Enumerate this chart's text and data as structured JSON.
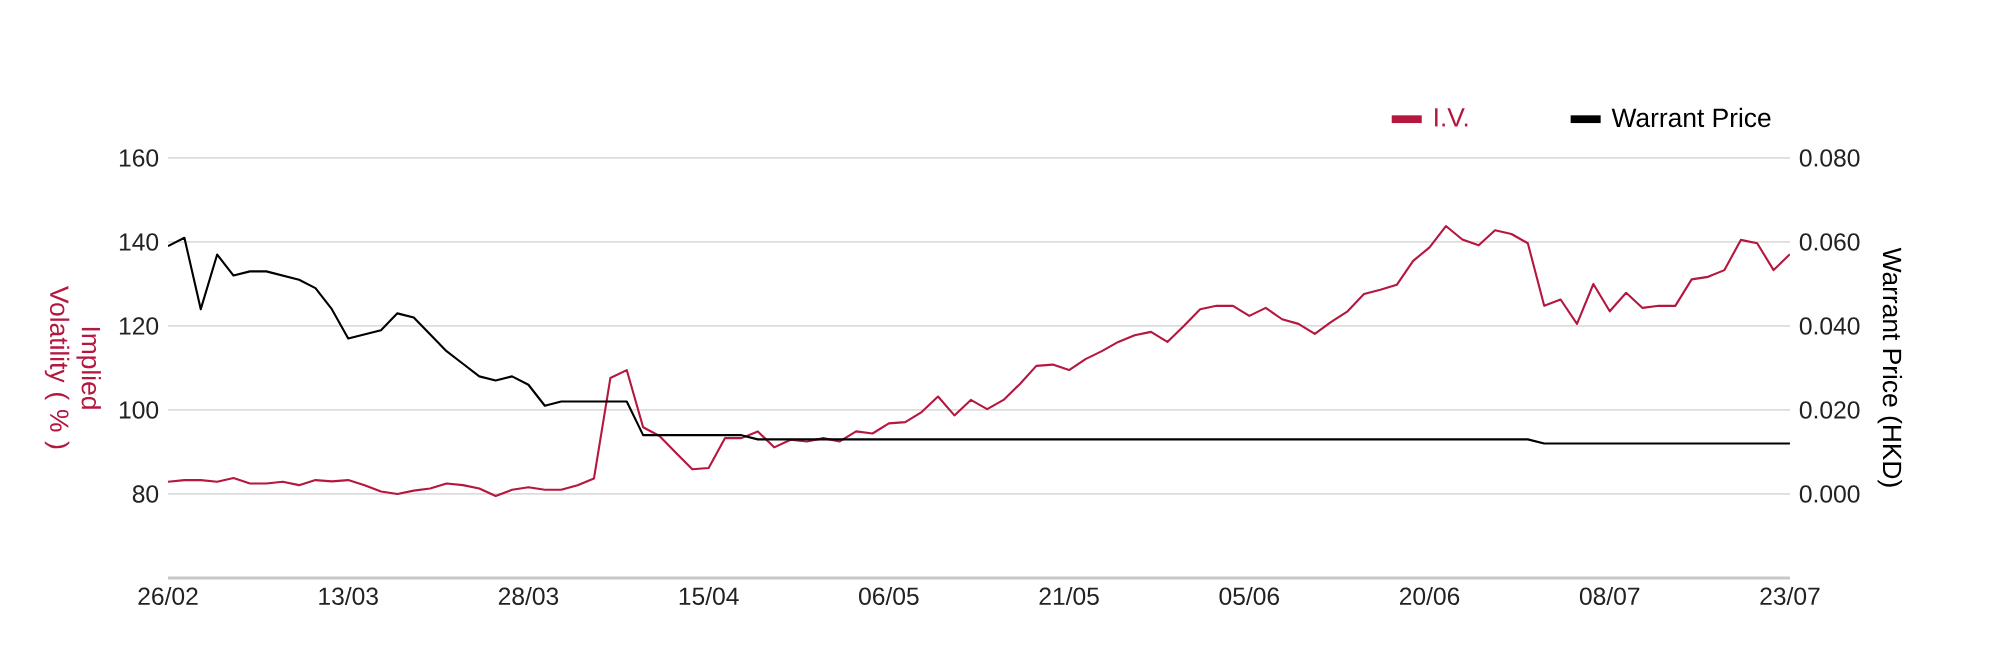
{
  "chart_data": {
    "type": "line",
    "categories": [
      "26/02",
      null,
      null,
      null,
      null,
      null,
      null,
      null,
      null,
      null,
      null,
      "13/03",
      null,
      null,
      null,
      null,
      null,
      null,
      null,
      null,
      null,
      null,
      "28/03",
      null,
      null,
      null,
      null,
      null,
      null,
      null,
      null,
      null,
      null,
      "15/04",
      null,
      null,
      null,
      null,
      null,
      null,
      null,
      null,
      null,
      null,
      "06/05",
      null,
      null,
      null,
      null,
      null,
      null,
      null,
      null,
      null,
      null,
      "21/05",
      null,
      null,
      null,
      null,
      null,
      null,
      null,
      null,
      null,
      null,
      "05/06",
      null,
      null,
      null,
      null,
      null,
      null,
      null,
      null,
      null,
      null,
      "20/06",
      null,
      null,
      null,
      null,
      null,
      null,
      null,
      null,
      null,
      null,
      "08/07",
      null,
      null,
      null,
      null,
      null,
      null,
      null,
      null,
      null,
      null,
      "23/07"
    ],
    "series": [
      {
        "name": "I.V.",
        "color": "#b5173f",
        "values": [
          82.9,
          83.3,
          83.3,
          82.9,
          83.8,
          82.5,
          82.5,
          82.9,
          82.1,
          83.3,
          83.0,
          83.3,
          82.1,
          80.6,
          80.0,
          80.8,
          81.3,
          82.5,
          82.1,
          81.3,
          79.5,
          81.0,
          81.6,
          81.0,
          81.0,
          82.1,
          83.7,
          107.6,
          109.5,
          95.9,
          93.8,
          89.8,
          85.9,
          86.2,
          93.3,
          93.3,
          94.9,
          91.1,
          92.9,
          92.5,
          93.3,
          92.5,
          94.9,
          94.4,
          96.8,
          97.1,
          99.5,
          103.2,
          98.7,
          102.4,
          100.2,
          102.4,
          106.2,
          110.5,
          110.8,
          109.5,
          112.1,
          114.0,
          116.2,
          117.8,
          118.6,
          116.2,
          120.0,
          124.0,
          124.8,
          124.8,
          122.4,
          124.3,
          121.6,
          120.5,
          118.1,
          121.0,
          123.5,
          127.6,
          128.6,
          129.8,
          135.5,
          138.7,
          143.8,
          140.6,
          139.2,
          142.8,
          141.9,
          139.7,
          124.8,
          126.3,
          120.5,
          130.0,
          123.5,
          127.9,
          124.3,
          124.8,
          124.8,
          131.1,
          131.7,
          133.3,
          140.5,
          139.7,
          133.3,
          137.1
        ]
      },
      {
        "name": "Warrant Price",
        "color": "#000000",
        "axis": "y2",
        "values": [
          0.059,
          0.061,
          0.044,
          0.057,
          0.052,
          0.053,
          0.053,
          0.052,
          0.051,
          0.049,
          0.044,
          0.037,
          0.038,
          0.039,
          0.043,
          0.042,
          0.038,
          0.034,
          0.031,
          0.028,
          0.027,
          0.028,
          0.026,
          0.021,
          0.022,
          0.022,
          0.022,
          0.022,
          0.022,
          0.014,
          0.014,
          0.014,
          0.014,
          0.014,
          0.014,
          0.014,
          0.013,
          0.013,
          0.013,
          0.013,
          0.013,
          0.013,
          0.013,
          0.013,
          0.013,
          0.013,
          0.013,
          0.013,
          0.013,
          0.013,
          0.013,
          0.013,
          0.013,
          0.013,
          0.013,
          0.013,
          0.013,
          0.013,
          0.013,
          0.013,
          0.013,
          0.013,
          0.013,
          0.013,
          0.013,
          0.013,
          0.013,
          0.013,
          0.013,
          0.013,
          0.013,
          0.013,
          0.013,
          0.013,
          0.013,
          0.013,
          0.013,
          0.013,
          0.013,
          0.013,
          0.013,
          0.013,
          0.013,
          0.013,
          0.012,
          0.012,
          0.012,
          0.012,
          0.012,
          0.012,
          0.012,
          0.012,
          0.012,
          0.012,
          0.012,
          0.012,
          0.012,
          0.012,
          0.012,
          0.012
        ]
      }
    ],
    "ylabel": "Implied Volatility ( % )",
    "y2label": "Warrant Price (HKD)",
    "ylim": [
      60,
      160
    ],
    "yticks": [
      80,
      100,
      120,
      140,
      160
    ],
    "y2lim": [
      -0.02,
      0.08
    ],
    "y2ticks": [
      {
        "value": 0,
        "label": "0.000"
      },
      {
        "value": 0.02,
        "label": "0.020"
      },
      {
        "value": 0.04,
        "label": "0.040"
      },
      {
        "value": 0.06,
        "label": "0.060"
      },
      {
        "value": 0.08,
        "label": "0.080"
      }
    ],
    "grid": "y",
    "legend": "top right"
  }
}
